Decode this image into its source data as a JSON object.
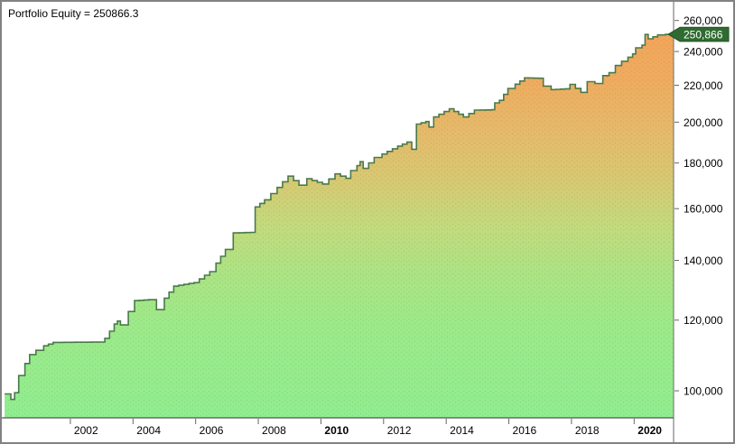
{
  "header": {
    "title": "Portfolio Equity = 250866.3"
  },
  "chart_data": {
    "type": "area",
    "title": "Portfolio Equity",
    "legend_position": "none",
    "grid": false,
    "x_axis": {
      "range": [
        1999.84,
        2021.26
      ],
      "ticks": [
        {
          "label": "2002",
          "year": 2002,
          "bold": false
        },
        {
          "label": "2004",
          "year": 2004,
          "bold": false
        },
        {
          "label": "2006",
          "year": 2006,
          "bold": false
        },
        {
          "label": "2008",
          "year": 2008,
          "bold": false
        },
        {
          "label": "2010",
          "year": 2010,
          "bold": true
        },
        {
          "label": "2012",
          "year": 2012,
          "bold": false
        },
        {
          "label": "2014",
          "year": 2014,
          "bold": false
        },
        {
          "label": "2016",
          "year": 2016,
          "bold": false
        },
        {
          "label": "2018",
          "year": 2018,
          "bold": false
        },
        {
          "label": "2020",
          "year": 2020,
          "bold": true
        }
      ]
    },
    "y_axis": {
      "scale": "log",
      "range": [
        93262,
        272200
      ],
      "ticks": [
        {
          "label": "260,000",
          "value": 260000
        },
        {
          "label": "240,000",
          "value": 240000
        },
        {
          "label": "220,000",
          "value": 220000
        },
        {
          "label": "200,000",
          "value": 200000
        },
        {
          "label": "180,000",
          "value": 180000
        },
        {
          "label": "160,000",
          "value": 160000
        },
        {
          "label": "140,000",
          "value": 140000
        },
        {
          "label": "120,000",
          "value": 120000
        },
        {
          "label": "100,000",
          "value": 100000
        }
      ]
    },
    "marker": {
      "label": "250,866",
      "value": 250866.3
    },
    "series": [
      {
        "name": "Portfolio Equity",
        "points": [
          [
            1999.9,
            99200
          ],
          [
            2000.1,
            97800
          ],
          [
            2000.22,
            99500
          ],
          [
            2000.35,
            104000
          ],
          [
            2000.55,
            107300
          ],
          [
            2000.7,
            109800
          ],
          [
            2000.9,
            111000
          ],
          [
            2001.15,
            112300
          ],
          [
            2001.45,
            113300
          ],
          [
            2003.0,
            113400
          ],
          [
            2003.1,
            114500
          ],
          [
            2003.4,
            118800
          ],
          [
            2003.5,
            119700
          ],
          [
            2003.6,
            118500
          ],
          [
            2003.85,
            122700
          ],
          [
            2004.05,
            126200
          ],
          [
            2004.5,
            126500
          ],
          [
            2004.75,
            123300
          ],
          [
            2005.0,
            127000
          ],
          [
            2005.3,
            131000
          ],
          [
            2005.95,
            132200
          ],
          [
            2006.45,
            136000
          ],
          [
            2006.65,
            139000
          ],
          [
            2006.95,
            144000
          ],
          [
            2007.2,
            150300
          ],
          [
            2007.75,
            150500
          ],
          [
            2007.9,
            160700
          ],
          [
            2008.2,
            163700
          ],
          [
            2008.6,
            169000
          ],
          [
            2008.95,
            174000
          ],
          [
            2009.3,
            170000
          ],
          [
            2009.55,
            172800
          ],
          [
            2010.05,
            170500
          ],
          [
            2010.45,
            175000
          ],
          [
            2010.8,
            173000
          ],
          [
            2010.95,
            176500
          ],
          [
            2011.15,
            178800
          ],
          [
            2011.25,
            180600
          ],
          [
            2011.35,
            177500
          ],
          [
            2011.7,
            182600
          ],
          [
            2011.95,
            184200
          ],
          [
            2012.45,
            188000
          ],
          [
            2012.75,
            190000
          ],
          [
            2012.9,
            186500
          ],
          [
            2013.05,
            199000
          ],
          [
            2013.35,
            200300
          ],
          [
            2013.45,
            197500
          ],
          [
            2013.6,
            202700
          ],
          [
            2014.1,
            207000
          ],
          [
            2014.55,
            202700
          ],
          [
            2014.9,
            206300
          ],
          [
            2015.45,
            206500
          ],
          [
            2015.55,
            210200
          ],
          [
            2015.7,
            211600
          ],
          [
            2015.97,
            218200
          ],
          [
            2016.2,
            220600
          ],
          [
            2016.5,
            224200
          ],
          [
            2016.95,
            224000
          ],
          [
            2017.1,
            219500
          ],
          [
            2017.35,
            217500
          ],
          [
            2017.8,
            218000
          ],
          [
            2017.95,
            220500
          ],
          [
            2018.3,
            216000
          ],
          [
            2018.5,
            222000
          ],
          [
            2018.75,
            221000
          ],
          [
            2019.0,
            225500
          ],
          [
            2019.2,
            227200
          ],
          [
            2019.4,
            231500
          ],
          [
            2019.6,
            234000
          ],
          [
            2019.8,
            236500
          ],
          [
            2019.95,
            238500
          ],
          [
            2020.05,
            242300
          ],
          [
            2020.25,
            243900
          ],
          [
            2020.35,
            250800
          ],
          [
            2020.45,
            248000
          ],
          [
            2020.75,
            250500
          ],
          [
            2021.0,
            250866
          ]
        ]
      }
    ],
    "colors": {
      "line": "#4a7a4a",
      "gradient": [
        {
          "offset": 0.0,
          "color": "#f4a155"
        },
        {
          "offset": 0.19,
          "color": "#efac60"
        },
        {
          "offset": 0.32,
          "color": "#e5bb6b"
        },
        {
          "offset": 0.43,
          "color": "#d7c973"
        },
        {
          "offset": 0.54,
          "color": "#c2db7d"
        },
        {
          "offset": 0.65,
          "color": "#ace484"
        },
        {
          "offset": 0.78,
          "color": "#9cea8a"
        },
        {
          "offset": 1.0,
          "color": "#90ee90"
        }
      ],
      "marker_bg": "#2f6b31",
      "marker_border": "#234f24",
      "marker_text": "#ffffff",
      "axis_line": "#808080",
      "x_axis_line": "#555555",
      "tick": "#666666"
    }
  }
}
